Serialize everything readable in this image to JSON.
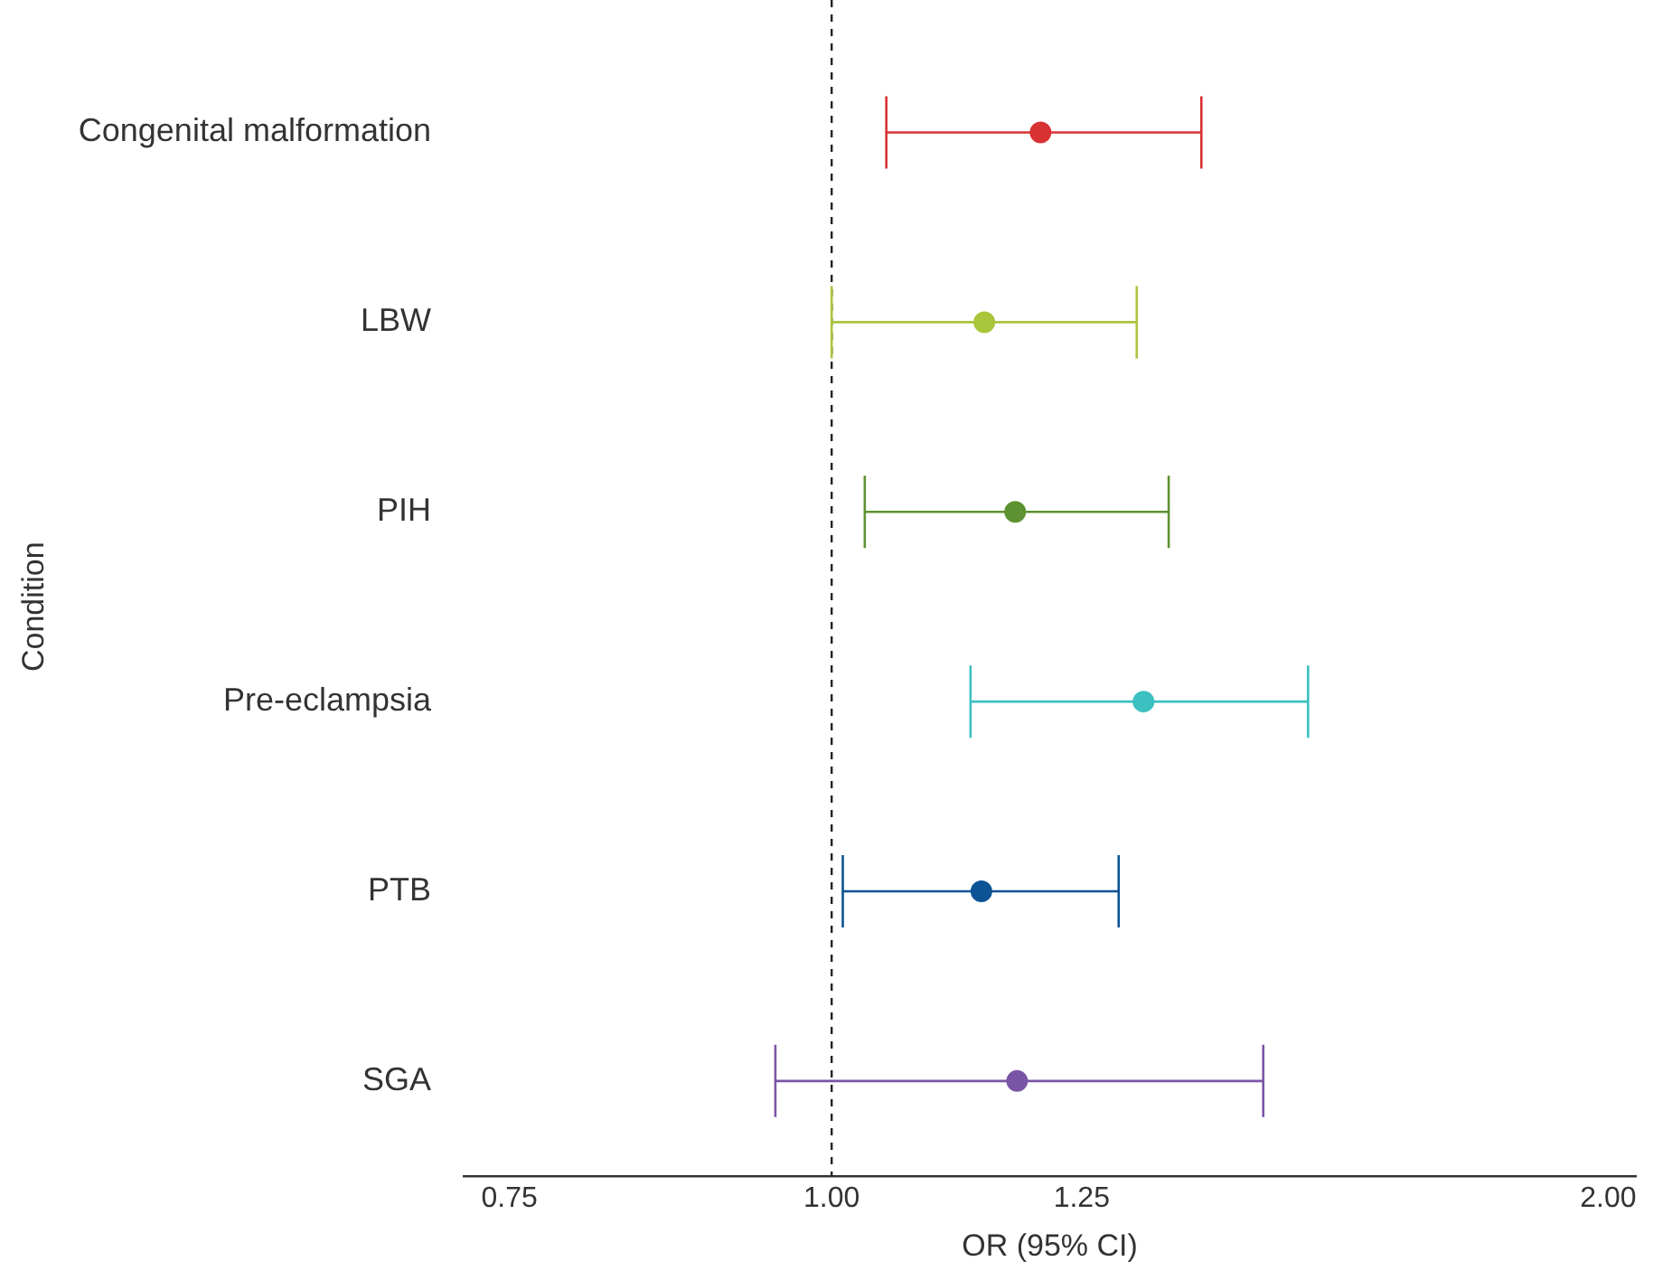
{
  "chart_data": {
    "type": "scatter",
    "orientation": "horizontal",
    "xlabel": "OR (95% CI)",
    "ylabel": "Condition",
    "categories": [
      "Congenital malformation",
      "LBW",
      "PIH",
      "Pre-eclampsia",
      "PTB",
      "SGA"
    ],
    "values": [
      1.205,
      1.146,
      1.178,
      1.321,
      1.143,
      1.18
    ],
    "errors": [
      [
        1.05,
        1.391
      ],
      [
        1.0,
        1.313
      ],
      [
        1.03,
        1.351
      ],
      [
        1.132,
        1.53
      ],
      [
        1.01,
        1.292
      ],
      [
        0.951,
        1.47
      ]
    ],
    "colors": [
      "#d83232",
      "#a9c53b",
      "#5e9232",
      "#3cc0c0",
      "#0b5394",
      "#7a55a5"
    ],
    "log": "x",
    "xlim": [
      0.72,
      2.05
    ],
    "xticks": [
      0.75,
      {
        "value": 1,
        "label": "1.00"
      },
      1.25,
      {
        "value": 2,
        "label": "2.00"
      }
    ],
    "ref_lines": [
      {
        "axis": "x",
        "value": 1,
        "color": "#222222",
        "line_style": "dashed"
      }
    ],
    "grid": false,
    "legend": false,
    "marker": "circle"
  }
}
